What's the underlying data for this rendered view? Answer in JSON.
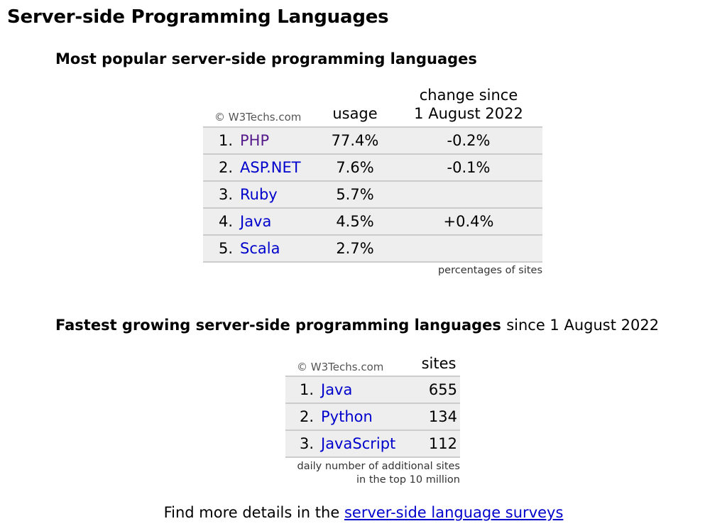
{
  "page_title": "Server-side Programming Languages",
  "popular": {
    "title": "Most popular server-side programming languages",
    "copyright": "© W3Techs.com",
    "col_usage": "usage",
    "col_change_1": "change since",
    "col_change_2": "1 August 2022",
    "rows": [
      {
        "rank": "1.",
        "name": "PHP",
        "usage": "77.4%",
        "change": "-0.2%"
      },
      {
        "rank": "2.",
        "name": "ASP.NET",
        "usage": "7.6%",
        "change": "-0.1%"
      },
      {
        "rank": "3.",
        "name": "Ruby",
        "usage": "5.7%",
        "change": ""
      },
      {
        "rank": "4.",
        "name": "Java",
        "usage": "4.5%",
        "change": "+0.4%"
      },
      {
        "rank": "5.",
        "name": "Scala",
        "usage": "2.7%",
        "change": ""
      }
    ],
    "note": "percentages of sites"
  },
  "growing": {
    "title_bold": "Fastest growing server-side programming languages",
    "title_normal": "since 1 August 2022",
    "copyright": "© W3Techs.com",
    "col_sites": "sites",
    "rows": [
      {
        "rank": "1.",
        "name": "Java",
        "sites": "655"
      },
      {
        "rank": "2.",
        "name": "Python",
        "sites": "134"
      },
      {
        "rank": "3.",
        "name": "JavaScript",
        "sites": "112"
      }
    ],
    "note_1": "daily number of additional sites",
    "note_2": "in the top 10 million"
  },
  "footer": {
    "text": "Find more details in the",
    "link": "server-side language surveys"
  },
  "colors": {
    "link": "#0000cc",
    "visited_link": "#551a8b",
    "row_bg": "#eeeeee",
    "row_border": "#cccccc"
  }
}
